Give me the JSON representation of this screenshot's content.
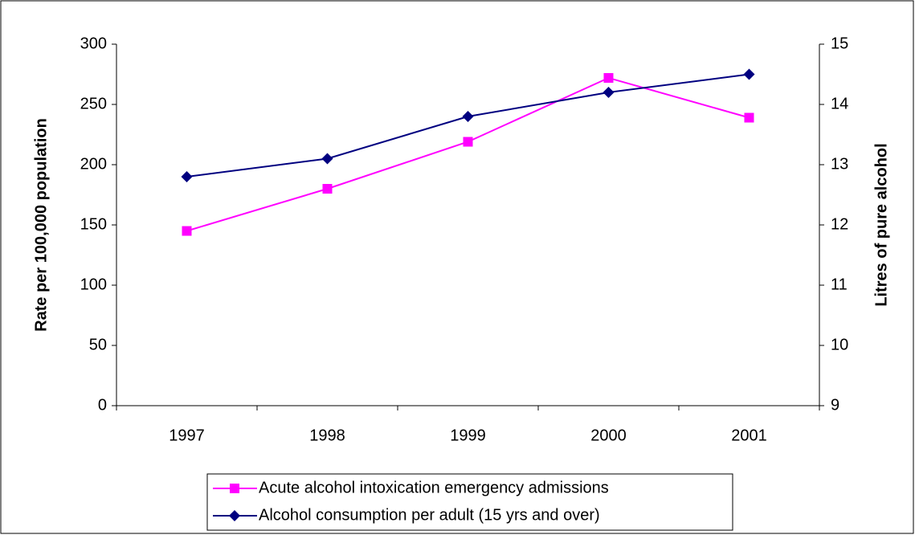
{
  "chart_data": {
    "type": "line",
    "categories": [
      "1997",
      "1998",
      "1999",
      "2000",
      "2001"
    ],
    "series": [
      {
        "name": "Acute alcohol intoxication emergency admissions",
        "color": "#ff00ff",
        "marker": "square",
        "axis": "y",
        "values": [
          145,
          180,
          219,
          272,
          239
        ]
      },
      {
        "name": "Alcohol consumption per adult (15 yrs and over)",
        "color": "#000080",
        "marker": "diamond",
        "axis": "y2",
        "values": [
          12.8,
          13.1,
          13.8,
          14.2,
          14.5
        ]
      }
    ],
    "ylabel": "Rate per 100,000 population",
    "y2label": "Litres of pure alcohol",
    "ylim": [
      0,
      300
    ],
    "yticks": [
      0,
      50,
      100,
      150,
      200,
      250,
      300
    ],
    "y2lim": [
      9,
      15
    ],
    "y2ticks": [
      9,
      10,
      11,
      12,
      13,
      14,
      15
    ],
    "grid": false,
    "legend": "bottom"
  }
}
